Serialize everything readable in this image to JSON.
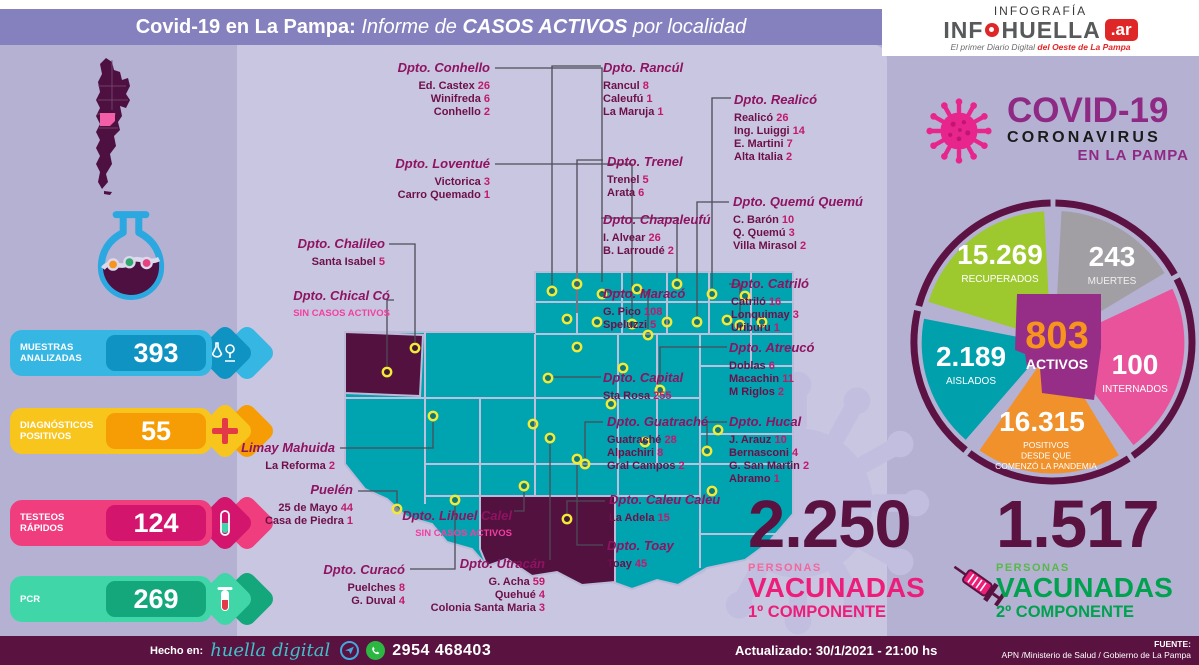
{
  "header": {
    "t1": "Covid-19 en La Pampa:",
    "t2": " Informe de ",
    "t3": "CASOS ACTIVOS",
    "t4": " por localidad"
  },
  "logo": {
    "kicker": "INFOGRAFÍA",
    "name1": "INF",
    "name2": "HUELLA",
    "domain": ".ar",
    "tagline1": "El primer Diario Digital ",
    "tagline2": "del Oeste de La Pampa"
  },
  "stats": [
    {
      "label": "MUESTRAS ANALIZADAS",
      "value": "393"
    },
    {
      "label": "DIAGNÓSTICOS POSITIVOS",
      "value": "55"
    },
    {
      "label": "TESTEOS RÁPIDOS",
      "value": "124"
    },
    {
      "label": "PCR",
      "value": "269"
    }
  ],
  "map_labels": [
    {
      "id": "conhello",
      "title": "Dpto. Conhello",
      "items": [
        {
          "n": "Ed. Castex",
          "v": "26"
        },
        {
          "n": "Winifreda",
          "v": "6"
        },
        {
          "n": "Conhello",
          "v": "2"
        }
      ]
    },
    {
      "id": "rancul",
      "title": "Dpto. Rancúl",
      "items": [
        {
          "n": "Rancul",
          "v": "8"
        },
        {
          "n": "Caleufú",
          "v": "1"
        },
        {
          "n": "La Maruja",
          "v": "1"
        }
      ]
    },
    {
      "id": "realico",
      "title": "Dpto. Realicó",
      "items": [
        {
          "n": "Realicó",
          "v": "26"
        },
        {
          "n": "Ing. Luiggi",
          "v": "14"
        },
        {
          "n": "E. Martini",
          "v": "7"
        },
        {
          "n": "Alta Italia",
          "v": "2"
        }
      ]
    },
    {
      "id": "trenel",
      "title": "Dpto. Trenel",
      "items": [
        {
          "n": "Trenel",
          "v": "5"
        },
        {
          "n": "Arata",
          "v": "6"
        }
      ]
    },
    {
      "id": "loventue",
      "title": "Dpto. Loventué",
      "items": [
        {
          "n": "Victorica",
          "v": "3"
        },
        {
          "n": "Carro Quemado",
          "v": "1"
        }
      ]
    },
    {
      "id": "chapaleufu",
      "title": "Dpto. Chapaleufú",
      "items": [
        {
          "n": "I. Alvear",
          "v": "26"
        },
        {
          "n": "B. Larroudé",
          "v": "2"
        }
      ]
    },
    {
      "id": "quemu",
      "title": "Dpto. Quemú Quemú",
      "items": [
        {
          "n": "C. Barón",
          "v": "10"
        },
        {
          "n": "Q. Quemú",
          "v": "3"
        },
        {
          "n": "Villa Mirasol",
          "v": "2"
        }
      ]
    },
    {
      "id": "chalileo",
      "title": "Dpto. Chalileo",
      "items": [
        {
          "n": "Santa Isabel",
          "v": "5"
        }
      ]
    },
    {
      "id": "chicalco",
      "title": "Dpto. Chical Có",
      "note": "SIN CASOS ACTIVOS",
      "items": []
    },
    {
      "id": "maraco",
      "title": "Dpto. Maracó",
      "items": [
        {
          "n": "G. Pico",
          "v": "108"
        },
        {
          "n": "Speluzzi",
          "v": "5"
        }
      ]
    },
    {
      "id": "catrilo",
      "title": "Dpto. Catriló",
      "items": [
        {
          "n": "Catriló",
          "v": "16"
        },
        {
          "n": "Lonquimay",
          "v": "3"
        },
        {
          "n": "Uriburu",
          "v": "1"
        }
      ]
    },
    {
      "id": "capital",
      "title": "Dpto. Capital",
      "items": [
        {
          "n": "Sta Rosa",
          "v": "255"
        }
      ]
    },
    {
      "id": "atreuco",
      "title": "Dpto. Atreucó",
      "items": [
        {
          "n": "Doblas",
          "v": "6"
        },
        {
          "n": "Macachin",
          "v": "11"
        },
        {
          "n": "M Riglos",
          "v": "2"
        }
      ]
    },
    {
      "id": "guatrache",
      "title": "Dpto. Guatraché",
      "items": [
        {
          "n": "Guatraché",
          "v": "28"
        },
        {
          "n": "Alpachiri",
          "v": "8"
        },
        {
          "n": "Gral Campos",
          "v": "2"
        }
      ]
    },
    {
      "id": "hucal",
      "title": "Dpto. Hucal",
      "items": [
        {
          "n": "J. Arauz",
          "v": "10"
        },
        {
          "n": "Bernasconi",
          "v": "4"
        },
        {
          "n": "G. San Martin",
          "v": "2"
        },
        {
          "n": "Abramo",
          "v": "1"
        }
      ]
    },
    {
      "id": "limay",
      "title": "Limay Mahuida",
      "items": [
        {
          "n": "La Reforma",
          "v": "2"
        }
      ]
    },
    {
      "id": "puelen",
      "title": "Puelén",
      "items": [
        {
          "n": "25 de Mayo",
          "v": "44"
        },
        {
          "n": "Casa de Piedra",
          "v": "1"
        }
      ]
    },
    {
      "id": "caleu",
      "title": "Dpto. Caleu Caleu",
      "items": [
        {
          "n": "La Adela",
          "v": "15"
        }
      ]
    },
    {
      "id": "lihuel",
      "title": "Dpto. Lihuel Calel",
      "note": "SIN CASOS ACTIVOS",
      "items": []
    },
    {
      "id": "toay",
      "title": "Dpto. Toay",
      "items": [
        {
          "n": "Toay",
          "v": "45"
        }
      ]
    },
    {
      "id": "curaco",
      "title": "Dpto. Curacó",
      "items": [
        {
          "n": "Puelches",
          "v": "8"
        },
        {
          "n": "G. Duval",
          "v": "4"
        }
      ]
    },
    {
      "id": "utracan",
      "title": "Dpto. Utracán",
      "items": [
        {
          "n": "G. Acha",
          "v": "59"
        },
        {
          "n": "Quehué",
          "v": "4"
        },
        {
          "n": "Colonia Santa Maria",
          "v": "3"
        }
      ]
    }
  ],
  "covid_logo": {
    "line1": "COVID-19",
    "line2": "CORONAVIRUS",
    "line3": "EN LA PAMPA"
  },
  "chart_data": {
    "type": "pie",
    "title": "COVID-19 CORONAVIRUS EN LA PAMPA",
    "center_value": "803",
    "center_label": "ACTIVOS",
    "slices": [
      {
        "label": "RECUPERADOS",
        "value": 15269,
        "display": "15.269",
        "color": "#9dc92f"
      },
      {
        "label": "MUERTES",
        "value": 243,
        "display": "243",
        "color": "#a19fa3"
      },
      {
        "label": "INTERNADOS",
        "value": 100,
        "display": "100",
        "color": "#e9539b"
      },
      {
        "label": "POSITIVOS DESDE QUE COMENZÓ LA PANDEMIA",
        "label_lines": [
          "POSITIVOS",
          "DESDE QUE",
          "COMENZÓ LA PANDEMIA"
        ],
        "value": 16315,
        "display": "16.315",
        "color": "#f0912c"
      },
      {
        "label": "AISLADOS",
        "value": 2189,
        "display": "2.189",
        "color": "#00a0ad"
      }
    ]
  },
  "vaccinated": [
    {
      "value": 2250,
      "display": "2.250",
      "line1": "PERSONAS",
      "line2": "VACUNADAS",
      "line3": "1º COMPONENTE"
    },
    {
      "value": 1517,
      "display": "1.517",
      "line1": "PERSONAS",
      "line2": "VACUNADAS",
      "line3": "2º COMPONENTE"
    }
  ],
  "footer": {
    "made_label": "Hecho en:",
    "made_name": "huella digital",
    "phone": "2954 468403",
    "updated": "Actualizado: 30/1/2021  -  21:00 hs",
    "source_label": "FUENTE:",
    "source": "APN /Ministerio de Salud  / Gobierno de La Pampa"
  }
}
